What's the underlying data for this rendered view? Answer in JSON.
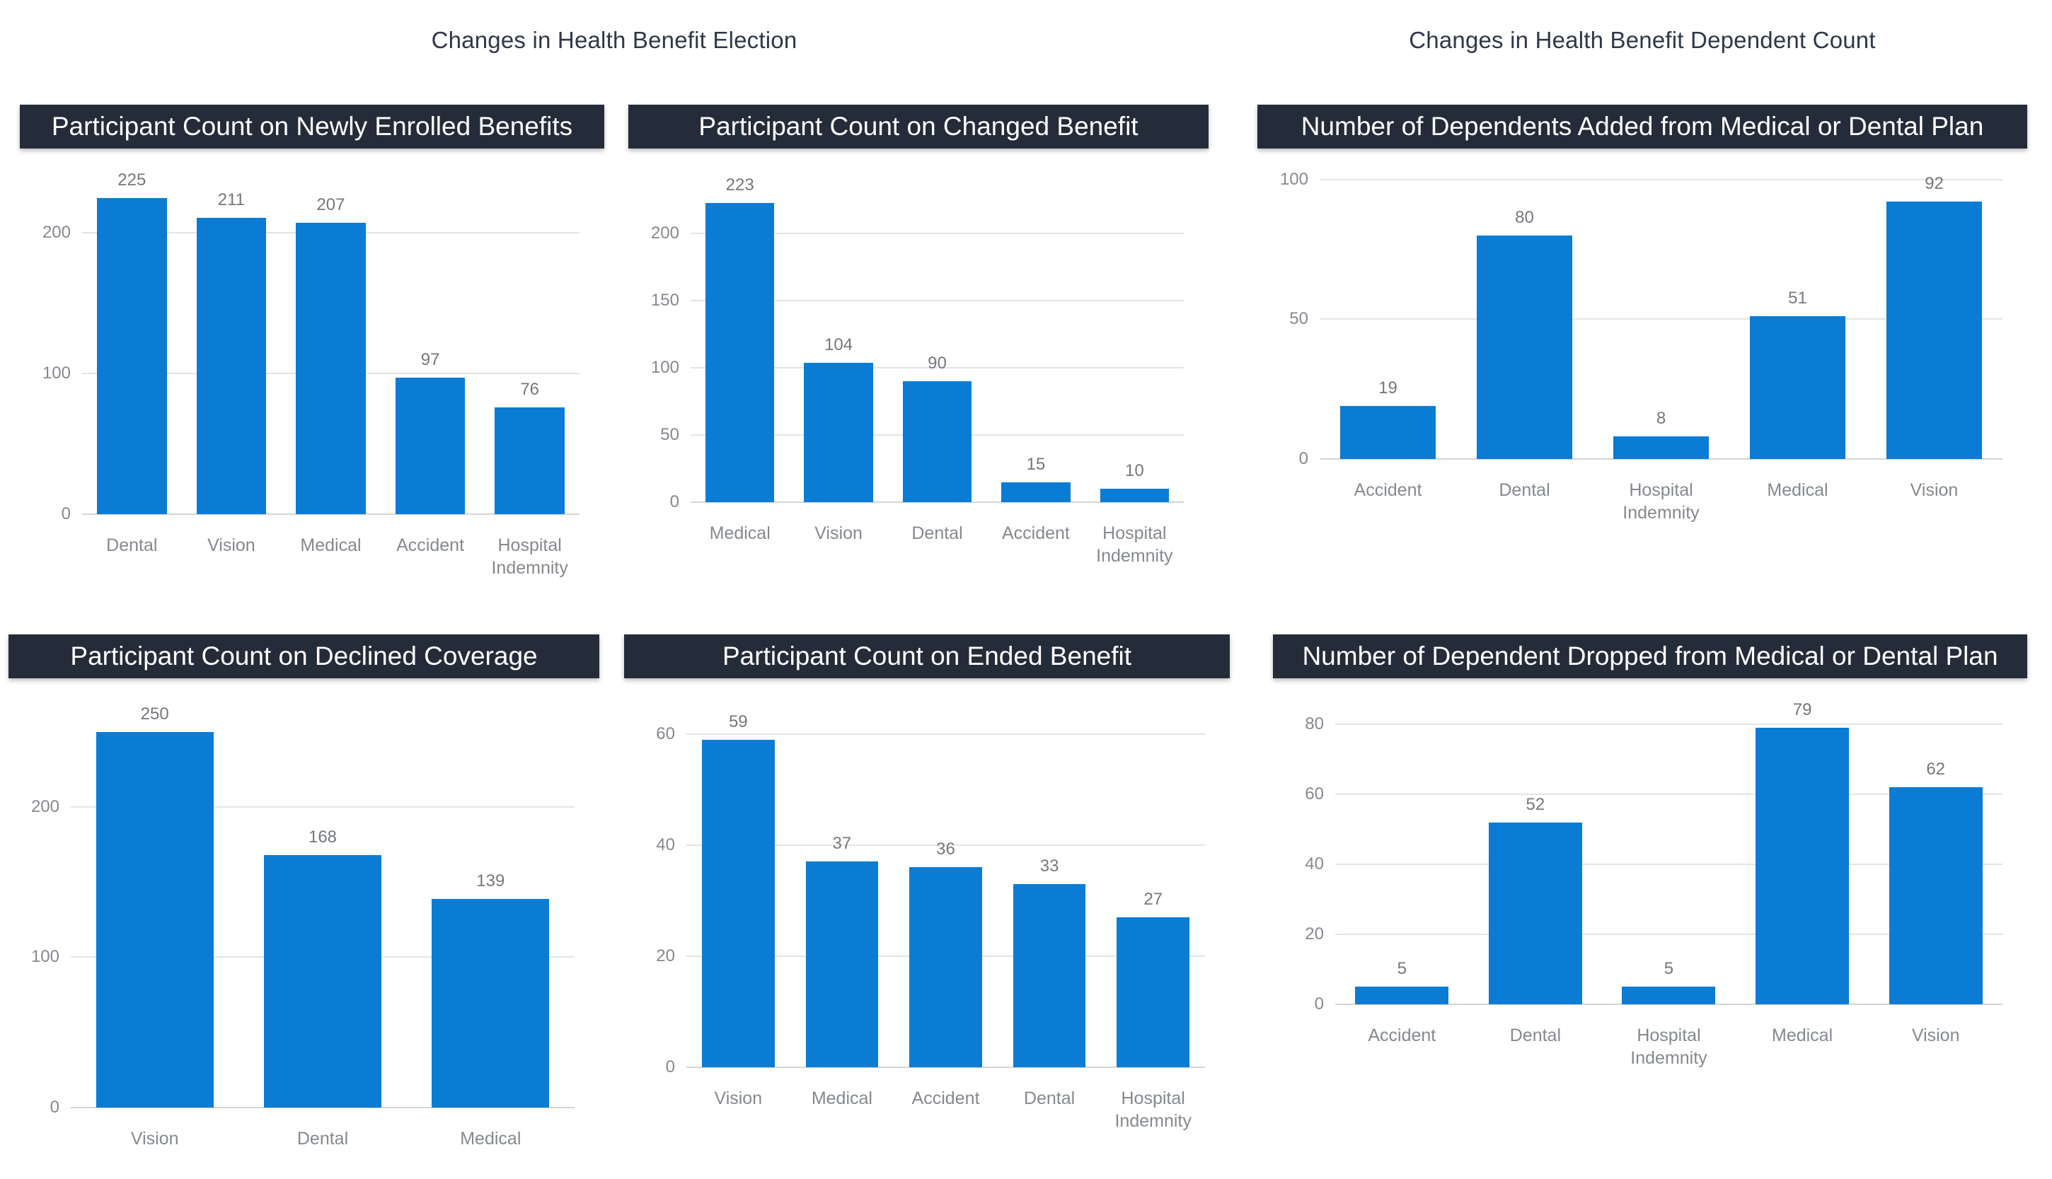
{
  "section_titles": [
    "Changes in Health Benefit Election",
    "Changes in Health Benefit Dependent Count"
  ],
  "colors": {
    "bar": "#0B7CD4",
    "header_bg": "#242C39",
    "header_text": "#FFFFFF",
    "section_title": "#2F3849",
    "gridline": "#E4E4E4",
    "zero_line": "#D5D5D5",
    "axis_label": "#85898E",
    "value_label": "#74787D"
  },
  "chart_data": [
    {
      "type": "bar",
      "title": "Participant Count on Newly Enrolled Benefits",
      "categories": [
        "Dental",
        "Vision",
        "Medical",
        "Accident",
        "Hospital Indemnity"
      ],
      "values": [
        225,
        211,
        207,
        97,
        76
      ],
      "yticks": [
        0,
        100,
        200
      ],
      "ylim": [
        0,
        252
      ],
      "grid": true,
      "legend": false
    },
    {
      "type": "bar",
      "title": "Participant Count on Changed Benefit",
      "categories": [
        "Medical",
        "Vision",
        "Dental",
        "Accident",
        "Hospital Indemnity"
      ],
      "values": [
        223,
        104,
        90,
        15,
        10
      ],
      "yticks": [
        0,
        50,
        100,
        150,
        200
      ],
      "ylim": [
        0,
        255
      ],
      "grid": true,
      "legend": false
    },
    {
      "type": "bar",
      "title": "Number of Dependents Added from Medical or Dental Plan",
      "categories": [
        "Accident",
        "Dental",
        "Hospital Indemnity",
        "Medical",
        "Vision"
      ],
      "values": [
        19,
        80,
        8,
        51,
        92
      ],
      "yticks": [
        0,
        50,
        100
      ],
      "ylim": [
        0,
        107
      ],
      "grid": true,
      "legend": false
    },
    {
      "type": "bar",
      "title": "Participant Count on Declined Coverage",
      "categories": [
        "Vision",
        "Dental",
        "Medical"
      ],
      "values": [
        250,
        168,
        139
      ],
      "yticks": [
        0,
        100,
        200
      ],
      "ylim": [
        0,
        278
      ],
      "grid": true,
      "legend": false
    },
    {
      "type": "bar",
      "title": "Participant Count on Ended Benefit",
      "categories": [
        "Vision",
        "Medical",
        "Accident",
        "Dental",
        "Hospital Indemnity"
      ],
      "values": [
        59,
        37,
        36,
        33,
        27
      ],
      "yticks": [
        0,
        20,
        40,
        60
      ],
      "ylim": [
        0,
        68
      ],
      "grid": true,
      "legend": false
    },
    {
      "type": "bar",
      "title": "Number of Dependent Dropped from Medical or Dental Plan",
      "categories": [
        "Accident",
        "Dental",
        "Hospital Indemnity",
        "Medical",
        "Vision"
      ],
      "values": [
        5,
        52,
        5,
        79,
        62
      ],
      "yticks": [
        0,
        20,
        40,
        60,
        80
      ],
      "ylim": [
        0,
        90
      ],
      "grid": true,
      "legend": false
    }
  ]
}
